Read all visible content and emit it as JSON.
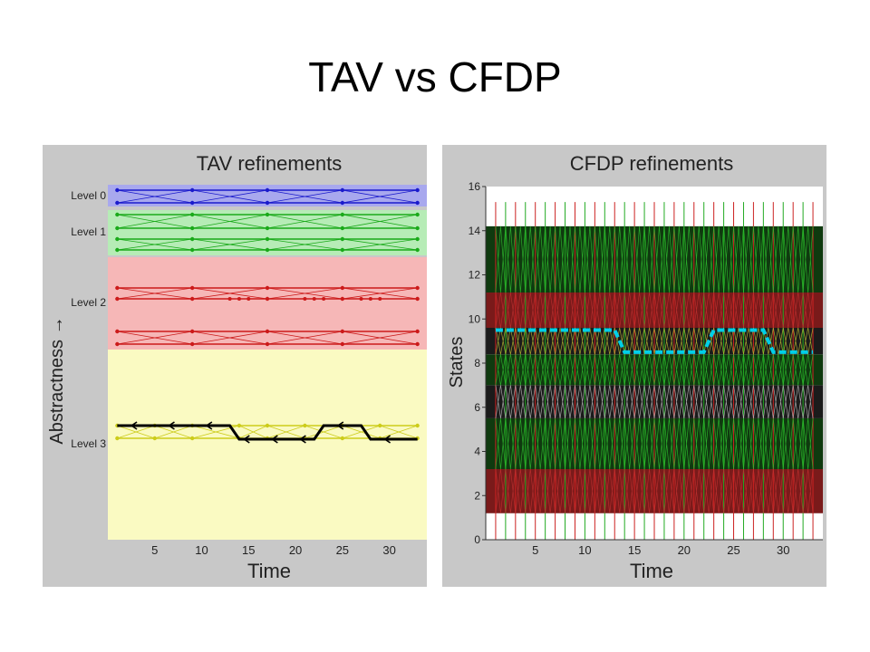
{
  "slide": {
    "title": "TAV vs CFDP"
  },
  "chart_data": [
    {
      "type": "line",
      "title": "TAV refinements",
      "xlabel": "Time",
      "ylabel": "Abstractness →",
      "xlim": [
        0,
        34
      ],
      "xticks": [
        5,
        10,
        15,
        20,
        25,
        30
      ],
      "bands": [
        {
          "label": "Level 0",
          "color": "#a8a8ee"
        },
        {
          "label": "Level 1",
          "color": "#b6ecb6"
        },
        {
          "label": "Level 2",
          "color": "#f6b7b7"
        },
        {
          "label": "Level 3",
          "color": "#fafac2"
        }
      ],
      "band_lines": [
        {
          "level": 0,
          "color": "#1a1acc",
          "value_pairs": [
            [
              1,
              9,
              17,
              25,
              33
            ],
            [
              1,
              9,
              17,
              25,
              33
            ]
          ]
        },
        {
          "level": 1,
          "color": "#1aaa1a",
          "value_pairs": [
            [
              1,
              9,
              17,
              25,
              33
            ],
            [
              1,
              9,
              17,
              25,
              33
            ],
            [
              1,
              9,
              17,
              25,
              33
            ],
            [
              1,
              9,
              17,
              25,
              33
            ]
          ]
        },
        {
          "level": 2,
          "color": "#cc1a1a",
          "value_pairs": [
            [
              1,
              9,
              17,
              25,
              33
            ],
            [
              1,
              9,
              17,
              25,
              33
            ],
            [
              1,
              9,
              17,
              25,
              33
            ],
            [
              1,
              9,
              17,
              25,
              33
            ]
          ]
        },
        {
          "level": 3,
          "color": "#cccc1a",
          "value_pairs": [
            [
              1,
              5,
              9,
              14,
              17,
              21,
              25,
              29,
              33
            ],
            [
              1,
              5,
              9,
              14,
              17,
              21,
              25,
              29,
              33
            ]
          ]
        }
      ],
      "series": [
        {
          "color": "#000000",
          "x": [
            1,
            13,
            14,
            22,
            23,
            27,
            28,
            33
          ],
          "y": [
            "high",
            "high",
            "low",
            "low",
            "high",
            "high",
            "low",
            "low"
          ]
        }
      ]
    },
    {
      "type": "line",
      "title": "CFDP refinements",
      "xlabel": "Time",
      "ylabel": "States",
      "xlim": [
        0,
        34
      ],
      "ylim": [
        0,
        16
      ],
      "xticks": [
        5,
        10,
        15,
        20,
        25,
        30
      ],
      "yticks": [
        0,
        2,
        4,
        6,
        8,
        10,
        12,
        14,
        16
      ],
      "series": [
        {
          "color": "#00cfe8",
          "style": "dashed",
          "x": [
            1,
            13,
            14,
            22,
            23,
            28,
            29,
            33
          ],
          "y": [
            9.5,
            9.5,
            8.5,
            8.5,
            9.5,
            9.5,
            8.5,
            8.5
          ]
        }
      ]
    }
  ]
}
